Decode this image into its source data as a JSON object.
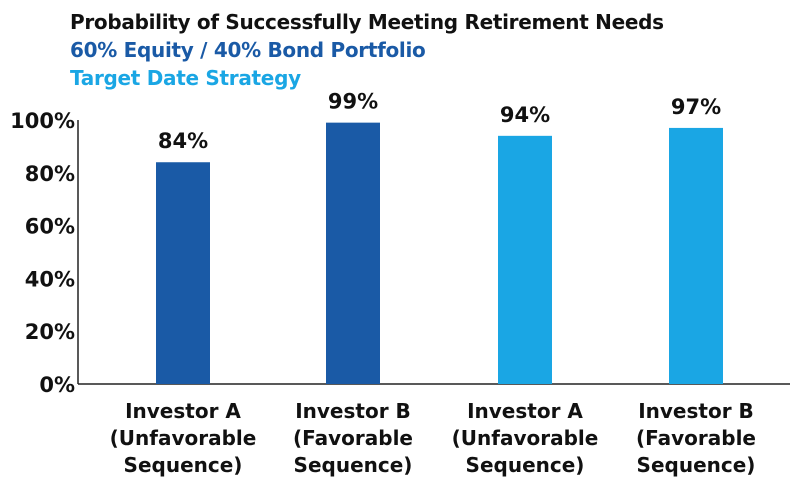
{
  "chart_data": {
    "type": "bar",
    "title": "Probability of Successfully Meeting Retirement Needs",
    "categories": [
      [
        "Investor A",
        "(Unfavorable",
        "Sequence)"
      ],
      [
        "Investor B",
        "(Favorable",
        "Sequence)"
      ],
      [
        "Investor A",
        "(Unfavorable",
        "Sequence)"
      ],
      [
        "Investor B",
        "(Favorable",
        "Sequence)"
      ]
    ],
    "values": [
      84,
      99,
      94,
      97
    ],
    "data_labels": [
      "84%",
      "99%",
      "94%",
      "97%"
    ],
    "bar_series": [
      0,
      0,
      1,
      1
    ],
    "series": [
      {
        "name": "60% Equity / 40% Bond Portfolio",
        "color": "#1a5aa6"
      },
      {
        "name": "Target Date Strategy",
        "color": "#1aa6e4"
      }
    ],
    "title_color": "#111111",
    "ylim": [
      0,
      100
    ],
    "y_ticks": [
      0,
      20,
      40,
      60,
      80,
      100
    ],
    "y_tick_labels": [
      "0%",
      "20%",
      "40%",
      "60%",
      "80%",
      "100%"
    ],
    "xlabel": "",
    "ylabel": "",
    "grid": false,
    "legend": "top-left, as colored subtitle lines"
  }
}
